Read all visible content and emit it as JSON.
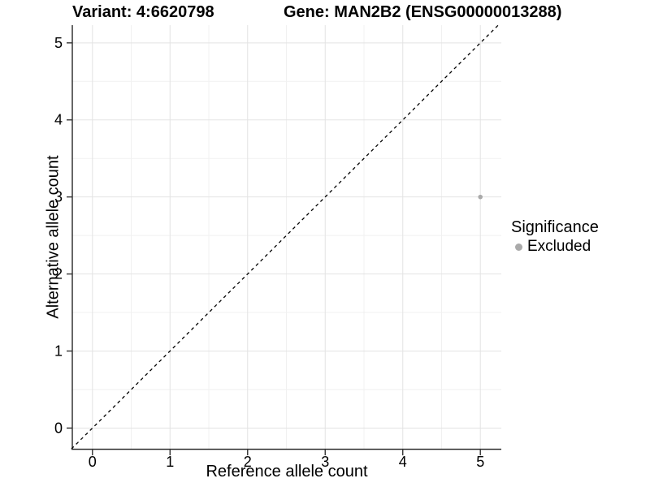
{
  "chart_data": {
    "type": "scatter",
    "titles": {
      "left": "Variant: 4:6620798",
      "right": "Gene: MAN2B2 (ENSG00000013288)"
    },
    "xlabel": "Reference allele count",
    "ylabel": "Alternative allele count",
    "xlim": [
      -0.27,
      5.27
    ],
    "ylim": [
      -0.27,
      5.23
    ],
    "x_ticks": [
      0,
      1,
      2,
      3,
      4,
      5
    ],
    "y_ticks": [
      0,
      1,
      2,
      3,
      4,
      5
    ],
    "x_minor": [
      0.5,
      1.5,
      2.5,
      3.5,
      4.5
    ],
    "y_minor": [
      0.5,
      1.5,
      2.5,
      3.5,
      4.5
    ],
    "grid": true,
    "reference_line": {
      "type": "y=x",
      "style": "dashed",
      "color": "#000000"
    },
    "series": [
      {
        "name": "Excluded",
        "color": "#aaaaaa",
        "points": [
          {
            "x": 5,
            "y": 3
          }
        ]
      }
    ],
    "legend": {
      "position": "right",
      "title": "Significance",
      "items": [
        {
          "label": "Excluded",
          "color": "#aaaaaa"
        }
      ]
    },
    "colors": {
      "grid_major": "#e3e3e3",
      "grid_minor": "#f1f1f1",
      "axis_line": "#333333",
      "tick_mark": "#333333",
      "text": "#000000"
    }
  }
}
